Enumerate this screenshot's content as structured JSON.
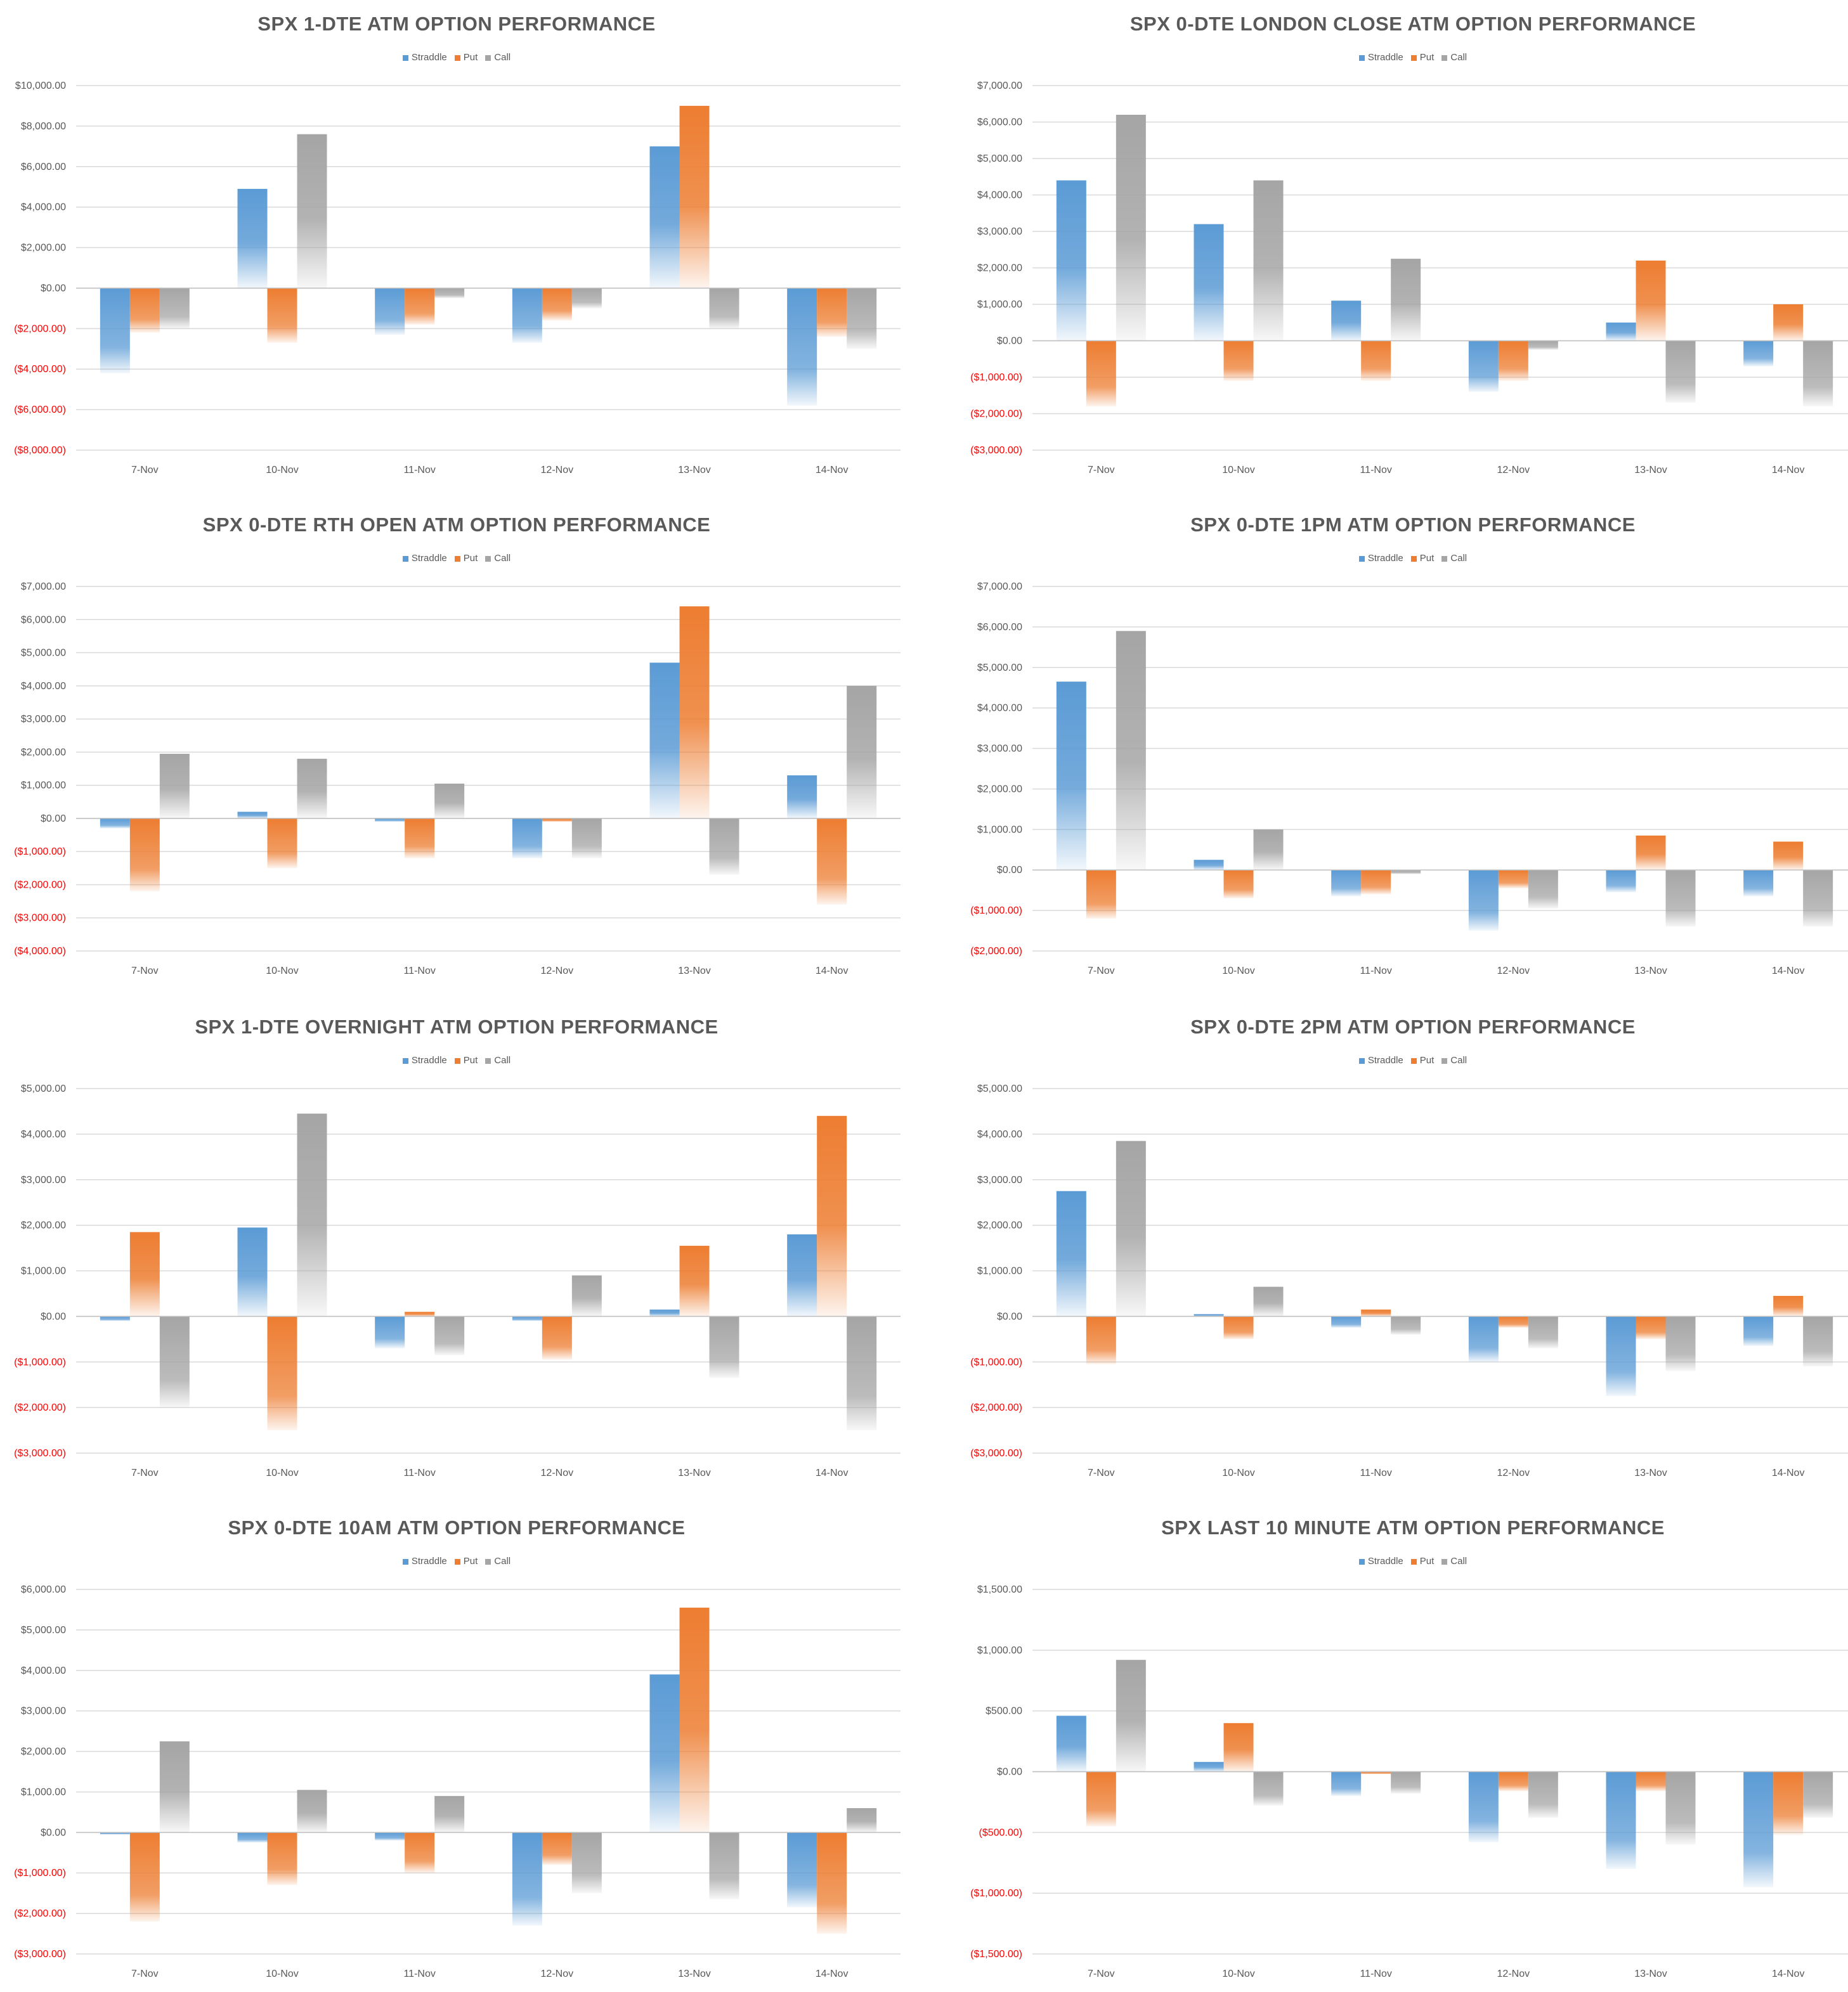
{
  "categories": [
    "7-Nov",
    "10-Nov",
    "11-Nov",
    "12-Nov",
    "13-Nov",
    "14-Nov"
  ],
  "colors": {
    "Straddle": "#5b9bd5",
    "Put": "#ed7d31",
    "Call": "#a5a5a5",
    "negative_label": "#ff0000",
    "axis_label": "#595959",
    "gridline": "#d9d9d9"
  },
  "legend": [
    "Straddle",
    "Put",
    "Call"
  ],
  "chart_data": [
    {
      "type": "bar",
      "title": "SPX 1-DTE ATM OPTION PERFORMANCE",
      "categories": [
        "7-Nov",
        "10-Nov",
        "11-Nov",
        "12-Nov",
        "13-Nov",
        "14-Nov"
      ],
      "ylim": [
        -8000,
        10000
      ],
      "ystep": 2000,
      "yticks": [
        "$10,000.00",
        "$8,000.00",
        "$6,000.00",
        "$4,000.00",
        "$2,000.00",
        "$0.00",
        "($2,000.00)",
        "($4,000.00)",
        "($6,000.00)",
        "($8,000.00)"
      ],
      "series": [
        {
          "name": "Straddle",
          "values": [
            -4200,
            4900,
            -2300,
            -2700,
            7000,
            -5800
          ]
        },
        {
          "name": "Put",
          "values": [
            -2200,
            -2700,
            -1800,
            -1600,
            9000,
            -2400
          ]
        },
        {
          "name": "Call",
          "values": [
            -2000,
            7600,
            -500,
            -1000,
            -2000,
            -3000
          ]
        }
      ]
    },
    {
      "type": "bar",
      "title": "SPX 0-DTE  LONDON CLOSE ATM OPTION PERFORMANCE",
      "categories": [
        "7-Nov",
        "10-Nov",
        "11-Nov",
        "12-Nov",
        "13-Nov",
        "14-Nov"
      ],
      "ylim": [
        -3000,
        7000
      ],
      "ystep": 1000,
      "yticks": [
        "$7,000.00",
        "$6,000.00",
        "$5,000.00",
        "$4,000.00",
        "$3,000.00",
        "$2,000.00",
        "$1,000.00",
        "$0.00",
        "($1,000.00)",
        "($2,000.00)",
        "($3,000.00)"
      ],
      "series": [
        {
          "name": "Straddle",
          "values": [
            4400,
            3200,
            1100,
            -1400,
            500,
            -700
          ]
        },
        {
          "name": "Put",
          "values": [
            -1800,
            -1100,
            -1100,
            -1100,
            2200,
            1000
          ]
        },
        {
          "name": "Call",
          "values": [
            6200,
            4400,
            2250,
            -250,
            -1700,
            -1800
          ]
        }
      ]
    },
    {
      "type": "bar",
      "title": "SPX 0-DTE RTH OPEN ATM OPTION PERFORMANCE",
      "categories": [
        "7-Nov",
        "10-Nov",
        "11-Nov",
        "12-Nov",
        "13-Nov",
        "14-Nov"
      ],
      "ylim": [
        -4000,
        7000
      ],
      "ystep": 1000,
      "yticks": [
        "$7,000.00",
        "$6,000.00",
        "$5,000.00",
        "$4,000.00",
        "$3,000.00",
        "$2,000.00",
        "$1,000.00",
        "$0.00",
        "($1,000.00)",
        "($2,000.00)",
        "($3,000.00)",
        "($4,000.00)"
      ],
      "series": [
        {
          "name": "Straddle",
          "values": [
            -300,
            200,
            -100,
            -1200,
            4700,
            1300
          ]
        },
        {
          "name": "Put",
          "values": [
            -2200,
            -1500,
            -1200,
            -100,
            6400,
            -2600
          ]
        },
        {
          "name": "Call",
          "values": [
            1950,
            1800,
            1050,
            -1200,
            -1700,
            4000
          ]
        }
      ]
    },
    {
      "type": "bar",
      "title": "SPX 0-DTE 1PM ATM OPTION PERFORMANCE",
      "categories": [
        "7-Nov",
        "10-Nov",
        "11-Nov",
        "12-Nov",
        "13-Nov",
        "14-Nov"
      ],
      "ylim": [
        -2000,
        7000
      ],
      "ystep": 1000,
      "yticks": [
        "$7,000.00",
        "$6,000.00",
        "$5,000.00",
        "$4,000.00",
        "$3,000.00",
        "$2,000.00",
        "$1,000.00",
        "$0.00",
        "($1,000.00)",
        "($2,000.00)"
      ],
      "series": [
        {
          "name": "Straddle",
          "values": [
            4650,
            250,
            -650,
            -1500,
            -550,
            -650
          ]
        },
        {
          "name": "Put",
          "values": [
            -1200,
            -700,
            -600,
            -450,
            850,
            700
          ]
        },
        {
          "name": "Call",
          "values": [
            5900,
            1000,
            -100,
            -950,
            -1400,
            -1400
          ]
        }
      ]
    },
    {
      "type": "bar",
      "title": "SPX 1-DTE OVERNIGHT ATM OPTION PERFORMANCE",
      "categories": [
        "7-Nov",
        "10-Nov",
        "11-Nov",
        "12-Nov",
        "13-Nov",
        "14-Nov"
      ],
      "ylim": [
        -3000,
        5000
      ],
      "ystep": 1000,
      "yticks": [
        "$5,000.00",
        "$4,000.00",
        "$3,000.00",
        "$2,000.00",
        "$1,000.00",
        "$0.00",
        "($1,000.00)",
        "($2,000.00)",
        "($3,000.00)"
      ],
      "series": [
        {
          "name": "Straddle",
          "values": [
            -100,
            1950,
            -700,
            -100,
            150,
            1800
          ]
        },
        {
          "name": "Put",
          "values": [
            1850,
            -2500,
            100,
            -950,
            1550,
            4400
          ]
        },
        {
          "name": "Call",
          "values": [
            -2000,
            4450,
            -850,
            900,
            -1350,
            -2500
          ]
        }
      ]
    },
    {
      "type": "bar",
      "title": "SPX 0-DTE 2PM ATM OPTION PERFORMANCE",
      "categories": [
        "7-Nov",
        "10-Nov",
        "11-Nov",
        "12-Nov",
        "13-Nov",
        "14-Nov"
      ],
      "ylim": [
        -3000,
        5000
      ],
      "ystep": 1000,
      "yticks": [
        "$5,000.00",
        "$4,000.00",
        "$3,000.00",
        "$2,000.00",
        "$1,000.00",
        "$0.00",
        "($1,000.00)",
        "($2,000.00)",
        "($3,000.00)"
      ],
      "series": [
        {
          "name": "Straddle",
          "values": [
            2750,
            50,
            -250,
            -1000,
            -1750,
            -650
          ]
        },
        {
          "name": "Put",
          "values": [
            -1050,
            -500,
            150,
            -250,
            -500,
            450
          ]
        },
        {
          "name": "Call",
          "values": [
            3850,
            650,
            -400,
            -700,
            -1200,
            -1100
          ]
        }
      ]
    },
    {
      "type": "bar",
      "title": "SPX 0-DTE 10AM ATM OPTION PERFORMANCE",
      "categories": [
        "7-Nov",
        "10-Nov",
        "11-Nov",
        "12-Nov",
        "13-Nov",
        "14-Nov"
      ],
      "ylim": [
        -3000,
        6000
      ],
      "ystep": 1000,
      "yticks": [
        "$6,000.00",
        "$5,000.00",
        "$4,000.00",
        "$3,000.00",
        "$2,000.00",
        "$1,000.00",
        "$0.00",
        "($1,000.00)",
        "($2,000.00)",
        "($3,000.00)"
      ],
      "series": [
        {
          "name": "Straddle",
          "values": [
            -50,
            -250,
            -200,
            -2300,
            3900,
            -1850
          ]
        },
        {
          "name": "Put",
          "values": [
            -2200,
            -1300,
            -1000,
            -800,
            5550,
            -2500
          ]
        },
        {
          "name": "Call",
          "values": [
            2250,
            1050,
            900,
            -1500,
            -1650,
            600
          ]
        }
      ]
    },
    {
      "type": "bar",
      "title": "SPX LAST 10 MINUTE ATM OPTION PERFORMANCE",
      "categories": [
        "7-Nov",
        "10-Nov",
        "11-Nov",
        "12-Nov",
        "13-Nov",
        "14-Nov"
      ],
      "ylim": [
        -1500,
        1500
      ],
      "ystep": 500,
      "yticks": [
        "$1,500.00",
        "$1,000.00",
        "$500.00",
        "$0.00",
        "($500.00)",
        "($1,000.00)",
        "($1,500.00)"
      ],
      "series": [
        {
          "name": "Straddle",
          "values": [
            460,
            80,
            -200,
            -580,
            -800,
            -950
          ]
        },
        {
          "name": "Put",
          "values": [
            -450,
            400,
            -20,
            -160,
            -160,
            -520
          ]
        },
        {
          "name": "Call",
          "values": [
            920,
            -280,
            -180,
            -380,
            -600,
            -380
          ]
        }
      ]
    }
  ]
}
